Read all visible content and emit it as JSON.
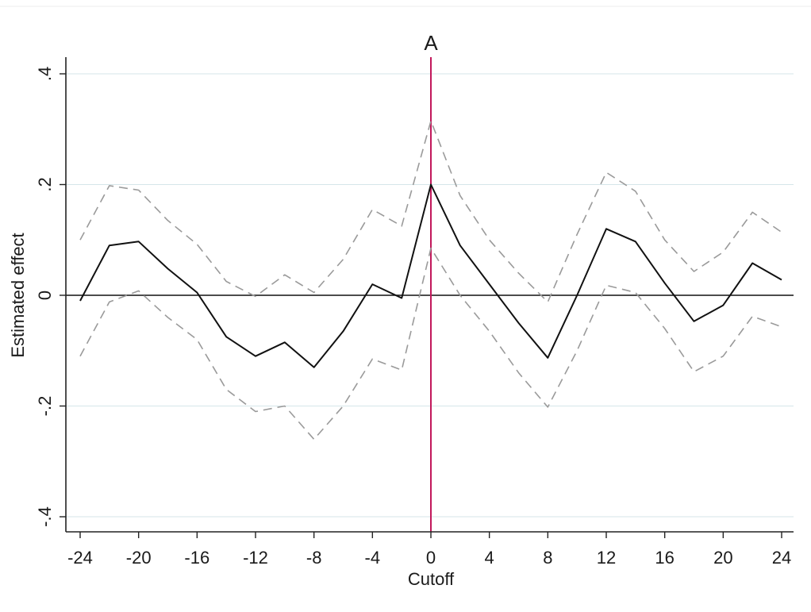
{
  "chart_data": {
    "type": "line",
    "title": "A",
    "xlabel": "Cutoff",
    "ylabel": "Estimated effect",
    "xlim": [
      -24,
      24
    ],
    "ylim": [
      -0.4,
      0.4
    ],
    "x_ticks": [
      -24,
      -20,
      -16,
      -12,
      -8,
      -4,
      0,
      4,
      8,
      12,
      16,
      20,
      24
    ],
    "x_tick_labels": [
      "-24",
      "-20",
      "-16",
      "-12",
      "-8",
      "-4",
      "0",
      "4",
      "8",
      "12",
      "16",
      "20",
      "24"
    ],
    "y_ticks": [
      -0.4,
      -0.2,
      0,
      0.2,
      0.4
    ],
    "y_tick_labels": [
      "-.4",
      "-.2",
      "0",
      ".2",
      ".4"
    ],
    "grid": "horizontal",
    "legend": "none",
    "reference_lines": {
      "horizontal_y": 0,
      "vertical_x": 0
    },
    "x": [
      -24,
      -22,
      -20,
      -18,
      -16,
      -14,
      -12,
      -10,
      -8,
      -6,
      -4,
      -2,
      0,
      2,
      4,
      6,
      8,
      10,
      12,
      14,
      16,
      18,
      20,
      22,
      24
    ],
    "series": [
      {
        "style": "solid",
        "color": "#111111",
        "values": [
          -0.01,
          0.09,
          0.097,
          0.048,
          0.005,
          -0.075,
          -0.11,
          -0.085,
          -0.13,
          -0.065,
          0.02,
          -0.005,
          0.2,
          0.09,
          0.02,
          -0.05,
          -0.113,
          0.0,
          0.12,
          0.097,
          0.022,
          -0.047,
          -0.018,
          0.058,
          0.028
        ]
      },
      {
        "style": "dashed",
        "color": "#9a9a9a",
        "values": [
          0.1,
          0.198,
          0.19,
          0.135,
          0.092,
          0.025,
          -0.002,
          0.037,
          0.005,
          0.065,
          0.155,
          0.125,
          0.315,
          0.18,
          0.1,
          0.04,
          -0.012,
          0.11,
          0.222,
          0.188,
          0.1,
          0.043,
          0.078,
          0.15,
          0.114
        ]
      },
      {
        "style": "dashed",
        "color": "#9a9a9a",
        "values": [
          -0.11,
          -0.012,
          0.008,
          -0.04,
          -0.08,
          -0.17,
          -0.21,
          -0.2,
          -0.26,
          -0.2,
          -0.115,
          -0.135,
          0.085,
          0.0,
          -0.065,
          -0.14,
          -0.202,
          -0.1,
          0.018,
          0.005,
          -0.06,
          -0.138,
          -0.11,
          -0.038,
          -0.057
        ]
      }
    ],
    "colors": {
      "axes": "#222222",
      "grid": "#d6e6ea",
      "zero_line": "#111111",
      "vertical_line": "#c2185b"
    }
  }
}
